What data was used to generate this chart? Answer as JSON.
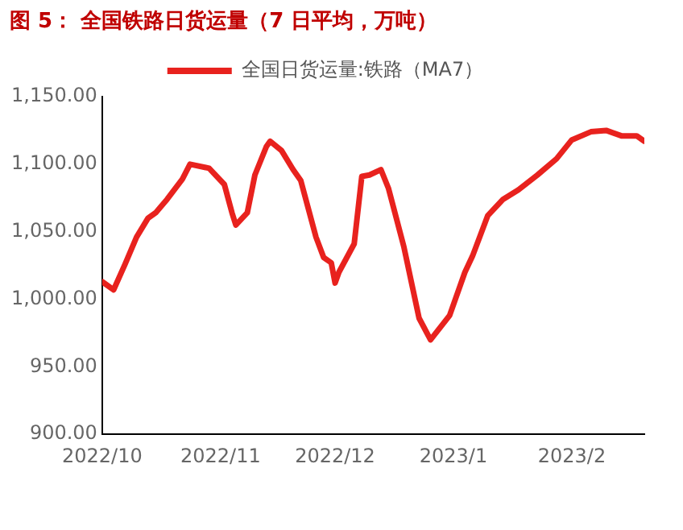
{
  "chart_data": {
    "type": "line",
    "title": "图 5：  全国铁路日货运量（7 日平均，万吨）",
    "legend": "top",
    "grid": false,
    "marker": "none",
    "x": [
      "2022-10-01",
      "2022-10-04",
      "2022-10-07",
      "2022-10-10",
      "2022-10-13",
      "2022-10-15",
      "2022-10-18",
      "2022-10-22",
      "2022-10-24",
      "2022-10-29",
      "2022-11-02",
      "2022-11-04",
      "2022-11-05",
      "2022-11-08",
      "2022-11-10",
      "2022-11-13",
      "2022-11-14",
      "2022-11-17",
      "2022-11-20",
      "2022-11-22",
      "2022-11-26",
      "2022-11-28",
      "2022-11-30",
      "2022-12-01",
      "2022-12-02",
      "2022-12-06",
      "2022-12-08",
      "2022-12-10",
      "2022-12-13",
      "2022-12-15",
      "2022-12-19",
      "2022-12-23",
      "2022-12-26",
      "2022-12-31",
      "2023-01-04",
      "2023-01-06",
      "2023-01-10",
      "2023-01-14",
      "2023-01-18",
      "2023-01-23",
      "2023-01-28",
      "2023-02-01",
      "2023-02-06",
      "2023-02-10",
      "2023-02-14",
      "2023-02-18",
      "2023-02-20"
    ],
    "series": [
      {
        "name": "全国日货运量:铁路（MA7）",
        "color": "#e8221e",
        "values": [
          1013,
          1007,
          1026,
          1046,
          1060,
          1064,
          1074,
          1089,
          1100,
          1097,
          1085,
          1064,
          1055,
          1064,
          1092,
          1113,
          1117,
          1110,
          1096,
          1088,
          1046,
          1031,
          1027,
          1012,
          1020,
          1041,
          1091,
          1092,
          1096,
          1082,
          1039,
          986,
          970,
          988,
          1020,
          1032,
          1062,
          1074,
          1081,
          1092,
          1104,
          1118,
          1124,
          1125,
          1121,
          1121,
          1117
        ]
      }
    ],
    "xlim": [
      "2022-10-01",
      "2023-02-20"
    ],
    "xticks": [
      {
        "value": "2022-10-01",
        "label": "2022/10"
      },
      {
        "value": "2022-11-01",
        "label": "2022/11"
      },
      {
        "value": "2022-12-01",
        "label": "2022/12"
      },
      {
        "value": "2023-01-01",
        "label": "2023/1"
      },
      {
        "value": "2023-02-01",
        "label": "2023/2"
      }
    ],
    "ylim": [
      900,
      1150
    ],
    "yticks": [
      {
        "value": 900,
        "label": "900.00"
      },
      {
        "value": 950,
        "label": "950.00"
      },
      {
        "value": 1000,
        "label": "1,000.00"
      },
      {
        "value": 1050,
        "label": "1,050.00"
      },
      {
        "value": 1100,
        "label": "1,100.00"
      },
      {
        "value": 1150,
        "label": "1,150.00"
      }
    ]
  }
}
